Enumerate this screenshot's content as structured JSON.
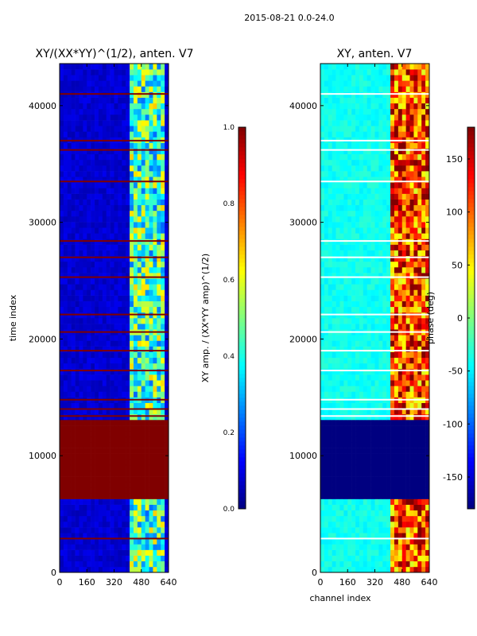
{
  "suptitle": "2015-08-21 0.0-24.0",
  "chart_data": [
    {
      "type": "heatmap",
      "title": "XY/(XX*YY)^(1/2), anten. V7",
      "xlabel": "",
      "ylabel": "time index",
      "x_ticks": [
        0,
        160,
        320,
        480,
        640
      ],
      "y_ticks": [
        0,
        10000,
        20000,
        30000,
        40000
      ],
      "xlim": [
        0,
        640
      ],
      "ylim": [
        0,
        43600
      ],
      "colormap": "jet",
      "colorbar": {
        "label": "XY amp. / (XX*YY amp)^(1/2)",
        "range": [
          0.0,
          1.0
        ],
        "ticks": [
          "0.0",
          "0.2",
          "0.4",
          "0.6",
          "0.8",
          "1.0"
        ]
      },
      "saturated_band": [
        6100,
        13000
      ],
      "saturated_value": 1.0,
      "active_channels": [
        420,
        620
      ],
      "background_value": 0.08,
      "active_value": 0.45,
      "flag_rows": [
        2900,
        13400,
        14000,
        14800,
        17300,
        19000,
        20600,
        22100,
        25300,
        27000,
        28400,
        33500,
        36200,
        37000,
        41000
      ]
    },
    {
      "type": "heatmap",
      "title": "XY, anten. V7",
      "xlabel": "channel index",
      "ylabel": "",
      "x_ticks": [
        0,
        160,
        320,
        480,
        640
      ],
      "y_ticks": [
        0,
        10000,
        20000,
        30000,
        40000
      ],
      "xlim": [
        0,
        640
      ],
      "ylim": [
        0,
        43600
      ],
      "colormap": "jet",
      "colorbar": {
        "label": "phase (deg)",
        "range": [
          -180,
          180
        ],
        "ticks": [
          "-150",
          "-100",
          "-50",
          "0",
          "50",
          "100",
          "150"
        ]
      },
      "saturated_band": [
        6100,
        13000
      ],
      "saturated_value": -180,
      "active_channels": [
        420,
        640
      ],
      "background_value": -40,
      "active_value": 110,
      "flag_rows": [
        2900,
        13400,
        14000,
        14800,
        17300,
        19000,
        20600,
        22100,
        25300,
        27000,
        28400,
        33500,
        36200,
        37000,
        41000
      ]
    }
  ]
}
